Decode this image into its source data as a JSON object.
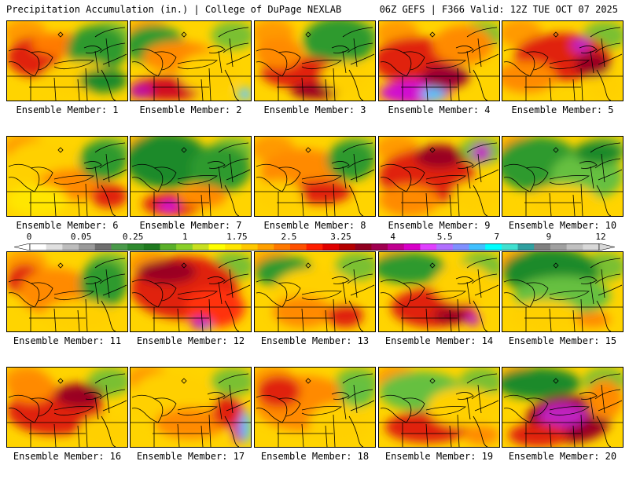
{
  "header": {
    "title": "Precipitation Accumulation (in.) | College of DuPage NEXLAB",
    "run_info": "06Z GEFS | F366 Valid: 12Z TUE OCT 07 2025"
  },
  "members": [
    {
      "label": "Ensemble Member: 1",
      "blobs": [
        [
          "#e02010",
          0.22,
          0.45,
          0.22,
          0.25
        ],
        [
          "#ff7a00",
          0.45,
          0.3,
          0.25,
          0.15
        ],
        [
          "#2e9a2e",
          0.75,
          0.35,
          0.25,
          0.3
        ],
        [
          "#ffd000",
          0.6,
          0.7,
          0.3,
          0.2
        ],
        [
          "#1f8a2a",
          0.8,
          0.75,
          0.2,
          0.15
        ]
      ]
    },
    {
      "label": "Ensemble Member: 2",
      "blobs": [
        [
          "#2e9a2e",
          0.2,
          0.3,
          0.25,
          0.25
        ],
        [
          "#ff8a00",
          0.4,
          0.45,
          0.3,
          0.2
        ],
        [
          "#d01020",
          0.3,
          0.85,
          0.3,
          0.15
        ],
        [
          "#c010a0",
          0.08,
          0.88,
          0.1,
          0.1
        ],
        [
          "#66ccff",
          0.95,
          0.92,
          0.06,
          0.08
        ],
        [
          "#ffd000",
          0.65,
          0.65,
          0.25,
          0.25
        ]
      ]
    },
    {
      "label": "Ensemble Member: 3",
      "blobs": [
        [
          "#2e9a2e",
          0.7,
          0.25,
          0.3,
          0.3
        ],
        [
          "#e02010",
          0.4,
          0.65,
          0.35,
          0.2
        ],
        [
          "#ff8a00",
          0.2,
          0.4,
          0.2,
          0.2
        ],
        [
          "#9a0020",
          0.5,
          0.88,
          0.2,
          0.1
        ],
        [
          "#ffd000",
          0.75,
          0.7,
          0.2,
          0.2
        ]
      ]
    },
    {
      "label": "Ensemble Member: 4",
      "blobs": [
        [
          "#e02010",
          0.3,
          0.5,
          0.35,
          0.3
        ],
        [
          "#d010d0",
          0.3,
          0.9,
          0.3,
          0.15
        ],
        [
          "#40c8ff",
          0.45,
          0.92,
          0.1,
          0.08
        ],
        [
          "#ff8a00",
          0.7,
          0.3,
          0.25,
          0.25
        ],
        [
          "#9a0030",
          0.55,
          0.7,
          0.2,
          0.15
        ]
      ]
    },
    {
      "label": "Ensemble Member: 5",
      "blobs": [
        [
          "#e02010",
          0.5,
          0.45,
          0.4,
          0.3
        ],
        [
          "#c020c0",
          0.65,
          0.3,
          0.08,
          0.1
        ],
        [
          "#ff8a00",
          0.2,
          0.7,
          0.25,
          0.2
        ],
        [
          "#ffd000",
          0.85,
          0.8,
          0.15,
          0.2
        ],
        [
          "#9a0020",
          0.75,
          0.55,
          0.15,
          0.15
        ]
      ]
    },
    {
      "label": "Ensemble Member: 6",
      "blobs": [
        [
          "#ffd000",
          0.3,
          0.35,
          0.3,
          0.3
        ],
        [
          "#ff8a00",
          0.55,
          0.6,
          0.3,
          0.2
        ],
        [
          "#e02010",
          0.85,
          0.75,
          0.15,
          0.15
        ],
        [
          "#2e9a2e",
          0.8,
          0.3,
          0.2,
          0.25
        ],
        [
          "#ffe600",
          0.25,
          0.8,
          0.25,
          0.2
        ]
      ]
    },
    {
      "label": "Ensemble Member: 7",
      "blobs": [
        [
          "#1f8a2a",
          0.3,
          0.3,
          0.35,
          0.35
        ],
        [
          "#2e9a2e",
          0.75,
          0.4,
          0.25,
          0.3
        ],
        [
          "#e02010",
          0.35,
          0.85,
          0.25,
          0.15
        ],
        [
          "#d010d0",
          0.32,
          0.88,
          0.08,
          0.08
        ],
        [
          "#ff8a00",
          0.6,
          0.75,
          0.2,
          0.15
        ]
      ]
    },
    {
      "label": "Ensemble Member: 8",
      "blobs": [
        [
          "#ff8a00",
          0.4,
          0.45,
          0.35,
          0.3
        ],
        [
          "#2e9a2e",
          0.8,
          0.3,
          0.2,
          0.25
        ],
        [
          "#e02010",
          0.55,
          0.7,
          0.25,
          0.15
        ],
        [
          "#ffd000",
          0.2,
          0.75,
          0.2,
          0.2
        ]
      ]
    },
    {
      "label": "Ensemble Member: 9",
      "blobs": [
        [
          "#e02010",
          0.4,
          0.5,
          0.4,
          0.35
        ],
        [
          "#9a0020",
          0.5,
          0.25,
          0.2,
          0.15
        ],
        [
          "#c020c0",
          0.85,
          0.2,
          0.08,
          0.12
        ],
        [
          "#ff8a00",
          0.25,
          0.8,
          0.25,
          0.2
        ],
        [
          "#ffd000",
          0.8,
          0.75,
          0.2,
          0.2
        ]
      ]
    },
    {
      "label": "Ensemble Member: 10",
      "blobs": [
        [
          "#2e9a2e",
          0.3,
          0.35,
          0.35,
          0.35
        ],
        [
          "#66c040",
          0.7,
          0.5,
          0.3,
          0.3
        ],
        [
          "#ffd000",
          0.5,
          0.8,
          0.3,
          0.2
        ],
        [
          "#1f8a2a",
          0.8,
          0.2,
          0.2,
          0.15
        ]
      ]
    },
    {
      "label": "Ensemble Member: 11",
      "blobs": [
        [
          "#e02010",
          0.15,
          0.35,
          0.15,
          0.2
        ],
        [
          "#ff8a00",
          0.4,
          0.5,
          0.3,
          0.3
        ],
        [
          "#2e9a2e",
          0.8,
          0.4,
          0.2,
          0.3
        ],
        [
          "#ffd000",
          0.6,
          0.8,
          0.3,
          0.2
        ]
      ]
    },
    {
      "label": "Ensemble Member: 12",
      "blobs": [
        [
          "#e02010",
          0.45,
          0.45,
          0.45,
          0.4
        ],
        [
          "#9a0020",
          0.3,
          0.25,
          0.25,
          0.15
        ],
        [
          "#ff3010",
          0.7,
          0.7,
          0.25,
          0.25
        ],
        [
          "#40c8ff",
          0.62,
          0.92,
          0.05,
          0.08
        ],
        [
          "#c020c0",
          0.58,
          0.9,
          0.08,
          0.08
        ]
      ]
    },
    {
      "label": "Ensemble Member: 13",
      "blobs": [
        [
          "#2e9a2e",
          0.25,
          0.25,
          0.25,
          0.2
        ],
        [
          "#ffd000",
          0.5,
          0.5,
          0.35,
          0.3
        ],
        [
          "#ff8a00",
          0.4,
          0.75,
          0.25,
          0.2
        ],
        [
          "#e02010",
          0.75,
          0.8,
          0.15,
          0.15
        ]
      ]
    },
    {
      "label": "Ensemble Member: 14",
      "blobs": [
        [
          "#2e9a2e",
          0.25,
          0.2,
          0.3,
          0.2
        ],
        [
          "#e02010",
          0.45,
          0.7,
          0.35,
          0.25
        ],
        [
          "#9a0020",
          0.6,
          0.8,
          0.15,
          0.1
        ],
        [
          "#c020c0",
          0.78,
          0.85,
          0.06,
          0.08
        ],
        [
          "#ffd000",
          0.7,
          0.4,
          0.25,
          0.25
        ]
      ]
    },
    {
      "label": "Ensemble Member: 15",
      "blobs": [
        [
          "#1f8a2a",
          0.4,
          0.25,
          0.4,
          0.3
        ],
        [
          "#66c040",
          0.5,
          0.55,
          0.4,
          0.25
        ],
        [
          "#ffd000",
          0.35,
          0.8,
          0.3,
          0.2
        ],
        [
          "#ff8a00",
          0.75,
          0.85,
          0.15,
          0.1
        ]
      ]
    },
    {
      "label": "Ensemble Member: 16",
      "blobs": [
        [
          "#e02010",
          0.4,
          0.55,
          0.4,
          0.3
        ],
        [
          "#ff8a00",
          0.2,
          0.25,
          0.2,
          0.2
        ],
        [
          "#9a0020",
          0.6,
          0.35,
          0.2,
          0.15
        ],
        [
          "#ffd000",
          0.8,
          0.8,
          0.2,
          0.2
        ]
      ]
    },
    {
      "label": "Ensemble Member: 17",
      "blobs": [
        [
          "#ffd000",
          0.35,
          0.4,
          0.35,
          0.35
        ],
        [
          "#ff8a00",
          0.5,
          0.7,
          0.3,
          0.2
        ],
        [
          "#c020c0",
          0.9,
          0.7,
          0.06,
          0.25
        ],
        [
          "#40c8ff",
          0.96,
          0.75,
          0.04,
          0.2
        ],
        [
          "#e02010",
          0.8,
          0.55,
          0.12,
          0.2
        ]
      ]
    },
    {
      "label": "Ensemble Member: 18",
      "blobs": [
        [
          "#ff8a00",
          0.4,
          0.45,
          0.4,
          0.35
        ],
        [
          "#e02010",
          0.2,
          0.3,
          0.18,
          0.2
        ],
        [
          "#ffd000",
          0.7,
          0.7,
          0.25,
          0.25
        ],
        [
          "#66c040",
          0.85,
          0.3,
          0.15,
          0.2
        ]
      ]
    },
    {
      "label": "Ensemble Member: 19",
      "blobs": [
        [
          "#66c040",
          0.35,
          0.3,
          0.35,
          0.25
        ],
        [
          "#e02010",
          0.4,
          0.75,
          0.35,
          0.2
        ],
        [
          "#ffd000",
          0.7,
          0.5,
          0.3,
          0.25
        ],
        [
          "#ff8a00",
          0.85,
          0.85,
          0.15,
          0.12
        ]
      ]
    },
    {
      "label": "Ensemble Member: 20",
      "blobs": [
        [
          "#1f8a2a",
          0.3,
          0.2,
          0.35,
          0.2
        ],
        [
          "#9a0020",
          0.55,
          0.65,
          0.35,
          0.3
        ],
        [
          "#c020c0",
          0.5,
          0.6,
          0.2,
          0.15
        ],
        [
          "#e02010",
          0.3,
          0.85,
          0.25,
          0.15
        ],
        [
          "#ff8a00",
          0.85,
          0.4,
          0.15,
          0.25
        ]
      ]
    }
  ],
  "colorbar": {
    "ticks": [
      "0",
      "0.05",
      "0.25",
      "1",
      "1.75",
      "2.5",
      "3.25",
      "4",
      "5.5",
      "7",
      "9",
      "12"
    ],
    "colors": [
      "#ffffff",
      "#e0e0e0",
      "#bdbdbd",
      "#9a9a9a",
      "#6e6e6e",
      "#4a9a4a",
      "#2e8a2e",
      "#1f7a1f",
      "#5ab02a",
      "#8ad02a",
      "#c8e020",
      "#ffff00",
      "#ffe600",
      "#ffc800",
      "#ffa000",
      "#ff7800",
      "#ff5000",
      "#ff1e00",
      "#e00000",
      "#b40000",
      "#900020",
      "#a00050",
      "#c00090",
      "#d800c8",
      "#e040ff",
      "#b070ff",
      "#8090ff",
      "#40c0ff",
      "#00ffff",
      "#40e0d0",
      "#30a0a0",
      "#808080",
      "#a0a0a0",
      "#c0c0c0",
      "#d8d8d8"
    ]
  }
}
